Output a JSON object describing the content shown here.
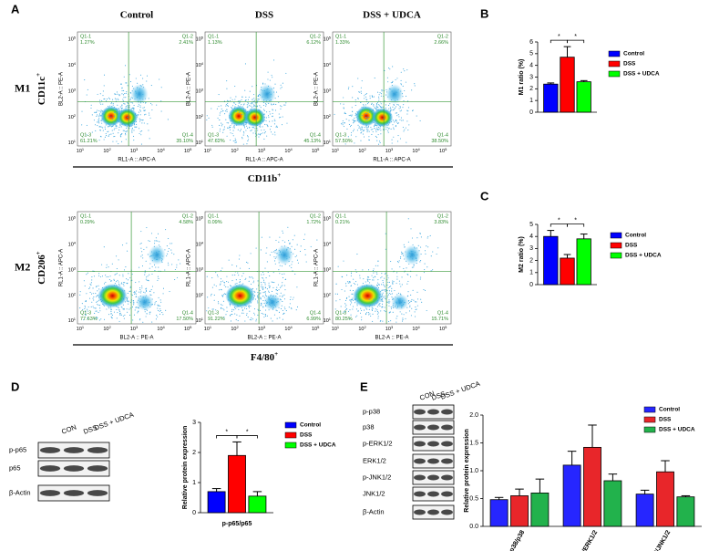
{
  "panel_labels": [
    "A",
    "B",
    "C",
    "D",
    "E"
  ],
  "flow": {
    "columns": [
      "Control",
      "DSS",
      "DSS + UDCA"
    ],
    "ticks": [
      {
        "base": "10",
        "exp": "1"
      },
      {
        "base": "10",
        "exp": "2"
      },
      {
        "base": "10",
        "exp": "3"
      },
      {
        "base": "10",
        "exp": "4"
      },
      {
        "base": "10",
        "exp": "5"
      }
    ],
    "quadrants": [
      "Q1-1",
      "Q1-2",
      "Q1-3",
      "Q1-4"
    ],
    "rows": [
      {
        "name": "M1",
        "y_marker": {
          "text": "CD11c",
          "sup": "+"
        },
        "x_marker": {
          "text": "CD11b",
          "sup": "+"
        },
        "y_axis": "BL2-A :: PE-A",
        "x_axis": "RL1-A :: APC-A",
        "percents": [
          [
            "1.27%",
            "2.41%",
            "61.21%",
            "35.10%"
          ],
          [
            "1.13%",
            "6.12%",
            "47.62%",
            "45.13%"
          ],
          [
            "1.33%",
            "2.66%",
            "57.50%",
            "38.50%"
          ]
        ]
      },
      {
        "name": "M2",
        "y_marker": {
          "text": "CD206",
          "sup": "+"
        },
        "x_marker": {
          "text": "F4/80",
          "sup": "+"
        },
        "y_axis": "RL1-A :: APC-A",
        "x_axis": "BL2-A :: PE-A",
        "percents": [
          [
            "0.29%",
            "4.58%",
            "77.63%",
            "17.50%"
          ],
          [
            "0.09%",
            "1.72%",
            "91.22%",
            "6.99%"
          ],
          [
            "0.21%",
            "3.83%",
            "80.25%",
            "15.71%"
          ]
        ]
      }
    ]
  },
  "blots": [
    {
      "lanes": [
        "CON",
        "DSS",
        "DSS + UDCA"
      ],
      "rows": [
        "p-p65",
        "p65",
        "β-Actin"
      ]
    },
    {
      "lanes": [
        "CON",
        "DSS",
        "DSS + UDCA"
      ],
      "rows": [
        "p-p38",
        "p38",
        "p-ERK1/2",
        "ERK1/2",
        "p-JNK1/2",
        "JNK1/2",
        "β-Actin"
      ]
    }
  ],
  "chart_data": [
    {
      "type": "bar",
      "y_label": "M1 ratio (%)",
      "ylim": [
        0,
        6
      ],
      "yticks": [
        0,
        1,
        2,
        3,
        4,
        5,
        6
      ],
      "significance": [
        "*",
        "*"
      ],
      "series": [
        {
          "name": "Control",
          "color": "#0000ff",
          "values": [
            2.4
          ],
          "errors": [
            0.1
          ]
        },
        {
          "name": "DSS",
          "color": "#ff0000",
          "values": [
            4.7
          ],
          "errors": [
            0.9
          ]
        },
        {
          "name": "DSS + UDCA",
          "color": "#00ff00",
          "values": [
            2.6
          ],
          "errors": [
            0.1
          ]
        }
      ]
    },
    {
      "type": "bar",
      "y_label": "M2 ratio (%)",
      "ylim": [
        0,
        5
      ],
      "yticks": [
        0,
        1,
        2,
        3,
        4,
        5
      ],
      "significance": [
        "*",
        "*"
      ],
      "series": [
        {
          "name": "Control",
          "color": "#0000ff",
          "values": [
            4.0
          ],
          "errors": [
            0.5
          ]
        },
        {
          "name": "DSS",
          "color": "#ff0000",
          "values": [
            2.2
          ],
          "errors": [
            0.3
          ]
        },
        {
          "name": "DSS + UDCA",
          "color": "#00ff00",
          "values": [
            3.8
          ],
          "errors": [
            0.4
          ]
        }
      ]
    },
    {
      "type": "bar",
      "y_label": "Relative protein expression",
      "ylim": [
        0,
        3
      ],
      "yticks": [
        0,
        1,
        2,
        3
      ],
      "significance": [
        "*",
        "*"
      ],
      "categories": [
        "p-p65/p65"
      ],
      "series": [
        {
          "name": "Control",
          "color": "#0000ff",
          "values": [
            0.7
          ],
          "errors": [
            0.1
          ]
        },
        {
          "name": "DSS",
          "color": "#ff0000",
          "values": [
            1.9
          ],
          "errors": [
            0.45
          ]
        },
        {
          "name": "DSS + UDCA",
          "color": "#00ff00",
          "values": [
            0.55
          ],
          "errors": [
            0.15
          ]
        }
      ]
    },
    {
      "type": "bar",
      "y_label": "Relative protein expression",
      "ylim": [
        0,
        2
      ],
      "yticks": [
        {
          "value": 0,
          "label": "0.0"
        },
        {
          "value": 0.5,
          "label": "0.5"
        },
        {
          "value": 1,
          "label": "1.0"
        },
        {
          "value": 1.5,
          "label": "1.5"
        },
        {
          "value": 2,
          "label": "2.0"
        }
      ],
      "categories": [
        "p-p38/p38",
        "p-ERK1/2/ERK1/2",
        "p-JNK1/2/JNK1/2"
      ],
      "series": [
        {
          "name": "Control",
          "color": "#2626ff",
          "values": [
            0.48,
            1.1,
            0.58
          ],
          "errors": [
            0.04,
            0.25,
            0.07
          ]
        },
        {
          "name": "DSS",
          "color": "#e8262a",
          "values": [
            0.55,
            1.42,
            0.98
          ],
          "errors": [
            0.12,
            0.4,
            0.2
          ]
        },
        {
          "name": "DSS + UDCA",
          "color": "#22b24c",
          "values": [
            0.6,
            0.82,
            0.53
          ],
          "errors": [
            0.25,
            0.12,
            0.02
          ]
        }
      ]
    }
  ]
}
